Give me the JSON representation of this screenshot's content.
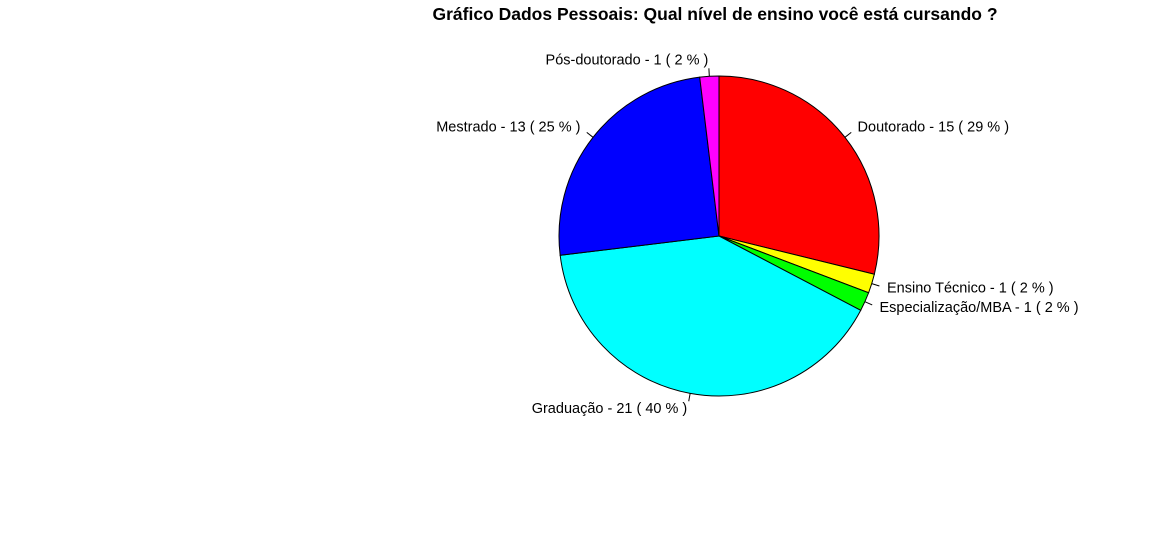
{
  "chart_data": {
    "type": "pie",
    "title": "Gráfico Dados Pessoais: Qual nível de ensino você está cursando ?",
    "slices": [
      {
        "label": "Doutorado - 15 ( 29 % )",
        "value": 15,
        "percent": 29,
        "color": "#ff0000"
      },
      {
        "label": "Ensino Técnico - 1 ( 2 % )",
        "value": 1,
        "percent": 2,
        "color": "#ffff00"
      },
      {
        "label": "Especialização/MBA - 1 ( 2 % )",
        "value": 1,
        "percent": 2,
        "color": "#00ff00"
      },
      {
        "label": "Graduação - 21 ( 40 % )",
        "value": 21,
        "percent": 40,
        "color": "#00ffff"
      },
      {
        "label": "Mestrado - 13 ( 25 % )",
        "value": 13,
        "percent": 25,
        "color": "#0000ff"
      },
      {
        "label": "Pós-doutorado - 1 ( 2 % )",
        "value": 1,
        "percent": 2,
        "color": "#ff00ff"
      }
    ],
    "direction": "clockwise",
    "start": "top"
  }
}
